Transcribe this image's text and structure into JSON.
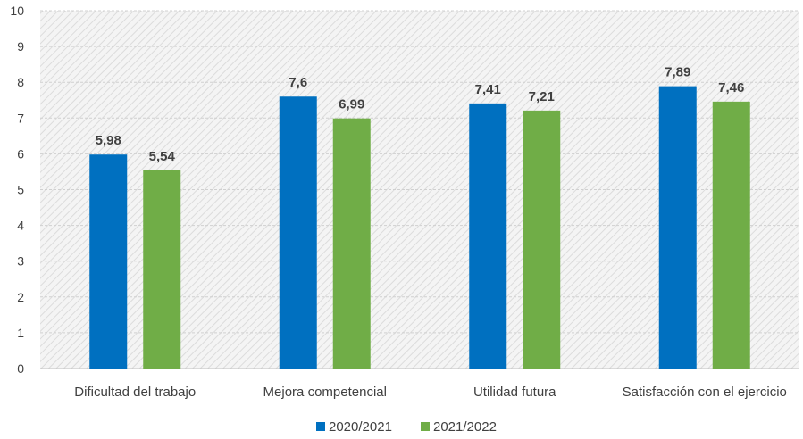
{
  "chart_data": {
    "type": "bar",
    "categories": [
      "Dificultad del trabajo",
      "Mejora competencial",
      "Utilidad futura",
      "Satisfacción con el ejercicio"
    ],
    "series": [
      {
        "name": "2020/2021",
        "color": "#0070c0",
        "values": [
          5.98,
          7.6,
          7.41,
          7.89
        ],
        "labels": [
          "5,98",
          "7,6",
          "7,41",
          "7,89"
        ]
      },
      {
        "name": "2021/2022",
        "color": "#70ad47",
        "values": [
          5.54,
          6.99,
          7.21,
          7.46
        ],
        "labels": [
          "5,54",
          "6,99",
          "7,21",
          "7,46"
        ]
      }
    ],
    "y_ticks": [
      "0",
      "1",
      "2",
      "3",
      "4",
      "5",
      "6",
      "7",
      "8",
      "9",
      "10"
    ],
    "ylim": [
      0,
      10
    ],
    "grid": true,
    "legend": "bottom-center",
    "title": "",
    "xlabel": "",
    "ylabel": ""
  }
}
